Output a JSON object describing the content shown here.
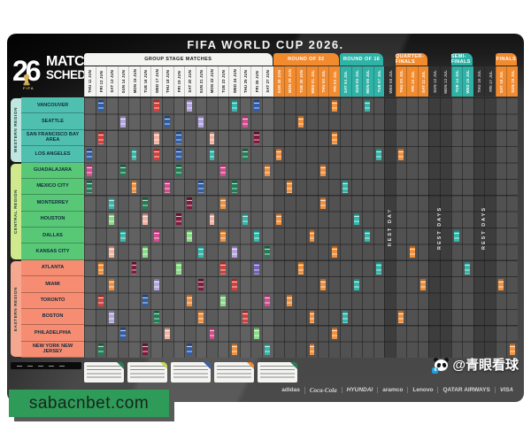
{
  "banner": {
    "text": "sabacnbet.com",
    "bg": "#2E9B58",
    "text_color": "#16251c"
  },
  "watermark": {
    "handle": "@青眼看球",
    "icon": "panda-icon"
  },
  "poster": {
    "title": "FIFA WORLD CUP 2026.",
    "logo": {
      "badge": "26",
      "fifa_label": "FIFA",
      "line1": "MATCH",
      "line2": "SCHEDULE"
    },
    "regions": [
      {
        "label": "WESTERN REGION",
        "bar_color": "#BFE6DF",
        "city_color": "#4FC0B0",
        "from": 0,
        "to": 3
      },
      {
        "label": "CENTRAL REGION",
        "bar_color": "#CFE98C",
        "city_color": "#58C877",
        "from": 4,
        "to": 9
      },
      {
        "label": "EASTERN REGION",
        "bar_color": "#F5A78F",
        "city_color": "#F68D72",
        "from": 10,
        "to": 15
      }
    ],
    "cities": [
      "VANCOUVER",
      "SEATTLE",
      "SAN FRANCISCO BAY AREA",
      "LOS ANGELES",
      "GUADALAJARA",
      "MEXICO CITY",
      "MONTERREY",
      "HOUSTON",
      "DALLAS",
      "KANSAS CITY",
      "ATLANTA",
      "MIAMI",
      "TORONTO",
      "BOSTON",
      "PHILADELPHIA",
      "NEW YORK NEW JERSEY"
    ],
    "stages": {
      "group": {
        "label": "GROUP STAGE MATCHES",
        "bg": "#F4F4F2",
        "fg": "#1a1a1a",
        "body": "#5e5e5e"
      },
      "r32": {
        "label": "ROUND OF 32",
        "bg": "#F28A2E",
        "fg": "#ffffff",
        "body": "#525252"
      },
      "r16": {
        "label": "ROUND OF 16",
        "bg": "#2FB3A7",
        "fg": "#ffffff",
        "body": "#525252"
      },
      "qf": {
        "label": "QUARTER-FINALS",
        "bg": "#F28A2E",
        "fg": "#ffffff",
        "body": "#525252"
      },
      "sf": {
        "label": "SEMI-FINALS",
        "bg": "#2FB3A7",
        "fg": "#ffffff",
        "body": "#525252"
      },
      "finals": {
        "label": "FINALS",
        "bg": "#F28A2E",
        "fg": "#ffffff",
        "body": "#525252"
      },
      "rest": {
        "bg": "#303030",
        "fg": "#cccccc",
        "body": "#3d3d3d"
      }
    },
    "stage_spans": [
      {
        "stage": "group",
        "from": 0,
        "to": 16
      },
      {
        "stage": "r32",
        "from": 17,
        "to": 22
      },
      {
        "stage": "r16",
        "from": 23,
        "to": 26
      },
      {
        "stage": "qf",
        "from": 28,
        "to": 30
      },
      {
        "stage": "sf",
        "from": 33,
        "to": 34
      },
      {
        "stage": "finals",
        "from": 37,
        "to": 38
      }
    ],
    "rest_spans": [
      {
        "from": 27,
        "to": 27,
        "label": "REST DAY"
      },
      {
        "from": 31,
        "to": 32,
        "label": "REST DAYS"
      },
      {
        "from": 35,
        "to": 36,
        "label": "REST DAYS"
      }
    ],
    "columns": [
      "THU 11 JUN",
      "FRI 12 JUN",
      "SAT 13 JUN",
      "SUN 14 JUN",
      "MON 15 JUN",
      "TUE 16 JUN",
      "WED 17 JUN",
      "THU 18 JUN",
      "FRI 19 JUN",
      "SAT 20 JUN",
      "SUN 21 JUN",
      "MON 22 JUN",
      "TUE 23 JUN",
      "WED 24 JUN",
      "THU 25 JUN",
      "FRI 26 JUN",
      "SAT 27 JUN",
      "SUN 28 JUN",
      "MON 29 JUN",
      "TUE 30 JUN",
      "WED 01 JUL",
      "THU 02 JUL",
      "FRI 03 JUL",
      "SAT 04 JUL",
      "SUN 05 JUL",
      "MON 06 JUL",
      "TUE 07 JUL",
      "WED 08 JUL",
      "THU 09 JUL",
      "FRI 10 JUL",
      "SAT 11 JUL",
      "SUN 12 JUL",
      "MON 13 JUL",
      "TUE 14 JUL",
      "WED 15 JUL",
      "THU 16 JUL",
      "FRI 17 JUL",
      "SAT 18 JUL",
      "SUN 19 JUL"
    ],
    "palette": {
      "bl": "#2E5EAA",
      "rd": "#D6403C",
      "lv": "#B3A6DE",
      "sa": "#F2B3A0",
      "te": "#35B8AC",
      "dg": "#1E7F55",
      "lg": "#8BDC87",
      "mg": "#D84A90",
      "mr": "#801A3C",
      "or": "#F2913D",
      "pu": "#7463B8",
      "pk": "#E86FA8"
    },
    "matches": [
      [
        0,
        1,
        "bl"
      ],
      [
        0,
        6,
        "rd"
      ],
      [
        0,
        9,
        "lv"
      ],
      [
        0,
        13,
        "te"
      ],
      [
        0,
        15,
        "bl"
      ],
      [
        1,
        3,
        "lv"
      ],
      [
        1,
        7,
        "bl"
      ],
      [
        1,
        10,
        "lv"
      ],
      [
        1,
        14,
        "mg"
      ],
      [
        2,
        1,
        "rd"
      ],
      [
        2,
        6,
        "sa"
      ],
      [
        2,
        8,
        "bl"
      ],
      [
        2,
        11,
        "sa"
      ],
      [
        2,
        15,
        "mr"
      ],
      [
        3,
        0,
        "bl"
      ],
      [
        3,
        4,
        "te"
      ],
      [
        3,
        6,
        "rd"
      ],
      [
        3,
        8,
        "bl"
      ],
      [
        3,
        11,
        "te"
      ],
      [
        3,
        14,
        "dg"
      ],
      [
        4,
        0,
        "mg"
      ],
      [
        4,
        3,
        "dg"
      ],
      [
        4,
        8,
        "dg"
      ],
      [
        4,
        12,
        "mg"
      ],
      [
        4,
        16,
        "or"
      ],
      [
        5,
        0,
        "dg"
      ],
      [
        5,
        4,
        "or"
      ],
      [
        5,
        7,
        "mg"
      ],
      [
        5,
        10,
        "bl"
      ],
      [
        5,
        13,
        "dg"
      ],
      [
        6,
        2,
        "te"
      ],
      [
        6,
        5,
        "dg"
      ],
      [
        6,
        9,
        "mr"
      ],
      [
        6,
        12,
        "or"
      ],
      [
        7,
        2,
        "lg"
      ],
      [
        7,
        5,
        "sa"
      ],
      [
        7,
        8,
        "mr"
      ],
      [
        7,
        11,
        "sa"
      ],
      [
        7,
        14,
        "te"
      ],
      [
        8,
        3,
        "te"
      ],
      [
        8,
        6,
        "mg"
      ],
      [
        8,
        9,
        "lg"
      ],
      [
        8,
        12,
        "or"
      ],
      [
        8,
        15,
        "te"
      ],
      [
        9,
        2,
        "sa"
      ],
      [
        9,
        5,
        "lg"
      ],
      [
        9,
        10,
        "te"
      ],
      [
        9,
        13,
        "lv"
      ],
      [
        9,
        16,
        "dg"
      ],
      [
        10,
        1,
        "or"
      ],
      [
        10,
        4,
        "mr"
      ],
      [
        10,
        8,
        "lg"
      ],
      [
        10,
        12,
        "rd"
      ],
      [
        10,
        15,
        "pu"
      ],
      [
        11,
        2,
        "or"
      ],
      [
        11,
        6,
        "lv"
      ],
      [
        11,
        10,
        "mr"
      ],
      [
        11,
        13,
        "rd"
      ],
      [
        12,
        1,
        "rd"
      ],
      [
        12,
        5,
        "bl"
      ],
      [
        12,
        9,
        "or"
      ],
      [
        12,
        12,
        "lg"
      ],
      [
        12,
        16,
        "mg"
      ],
      [
        13,
        2,
        "lv"
      ],
      [
        13,
        6,
        "dg"
      ],
      [
        13,
        10,
        "or"
      ],
      [
        13,
        14,
        "rd"
      ],
      [
        14,
        3,
        "bl"
      ],
      [
        14,
        7,
        "sa"
      ],
      [
        14,
        11,
        "mg"
      ],
      [
        14,
        15,
        "lg"
      ],
      [
        15,
        1,
        "dg"
      ],
      [
        15,
        5,
        "mr"
      ],
      [
        15,
        9,
        "bl"
      ],
      [
        15,
        13,
        "or"
      ],
      [
        15,
        16,
        "te"
      ],
      [
        3,
        17,
        "or"
      ],
      [
        7,
        17,
        "or"
      ],
      [
        5,
        18,
        "or"
      ],
      [
        12,
        18,
        "or"
      ],
      [
        1,
        19,
        "or"
      ],
      [
        10,
        19,
        "or"
      ],
      [
        8,
        20,
        "or"
      ],
      [
        13,
        20,
        "or"
      ],
      [
        15,
        20,
        "or"
      ],
      [
        4,
        21,
        "or"
      ],
      [
        6,
        21,
        "or"
      ],
      [
        11,
        21,
        "or"
      ],
      [
        0,
        22,
        "or"
      ],
      [
        2,
        22,
        "or"
      ],
      [
        9,
        22,
        "or"
      ],
      [
        14,
        22,
        "or"
      ],
      [
        5,
        23,
        "te"
      ],
      [
        13,
        23,
        "te"
      ],
      [
        7,
        24,
        "te"
      ],
      [
        11,
        24,
        "te"
      ],
      [
        0,
        25,
        "te"
      ],
      [
        8,
        25,
        "te"
      ],
      [
        3,
        26,
        "te"
      ],
      [
        10,
        26,
        "te"
      ],
      [
        3,
        28,
        "or"
      ],
      [
        13,
        28,
        "or"
      ],
      [
        9,
        29,
        "or"
      ],
      [
        11,
        30,
        "or"
      ],
      [
        8,
        33,
        "te"
      ],
      [
        10,
        34,
        "te"
      ],
      [
        11,
        37,
        "or"
      ],
      [
        15,
        38,
        "or"
      ]
    ],
    "legend_groups": [
      {
        "corner": "#1E7F55"
      },
      {
        "corner": "#C4D94E"
      },
      {
        "corner": "#2E5EAA"
      },
      {
        "corner": "#F28A2E"
      },
      {
        "corner": "#1E7F55"
      }
    ],
    "sponsors": [
      {
        "name": "adidas",
        "style": ""
      },
      {
        "name": "Coca-Cola",
        "style": "script"
      },
      {
        "name": "HYUNDAI",
        "style": "italic"
      },
      {
        "name": "aramco",
        "style": ""
      },
      {
        "name": "Lenovo",
        "style": ""
      },
      {
        "name": "QATAR AIRWAYS",
        "style": ""
      },
      {
        "name": "VISA",
        "style": "italic"
      }
    ]
  }
}
